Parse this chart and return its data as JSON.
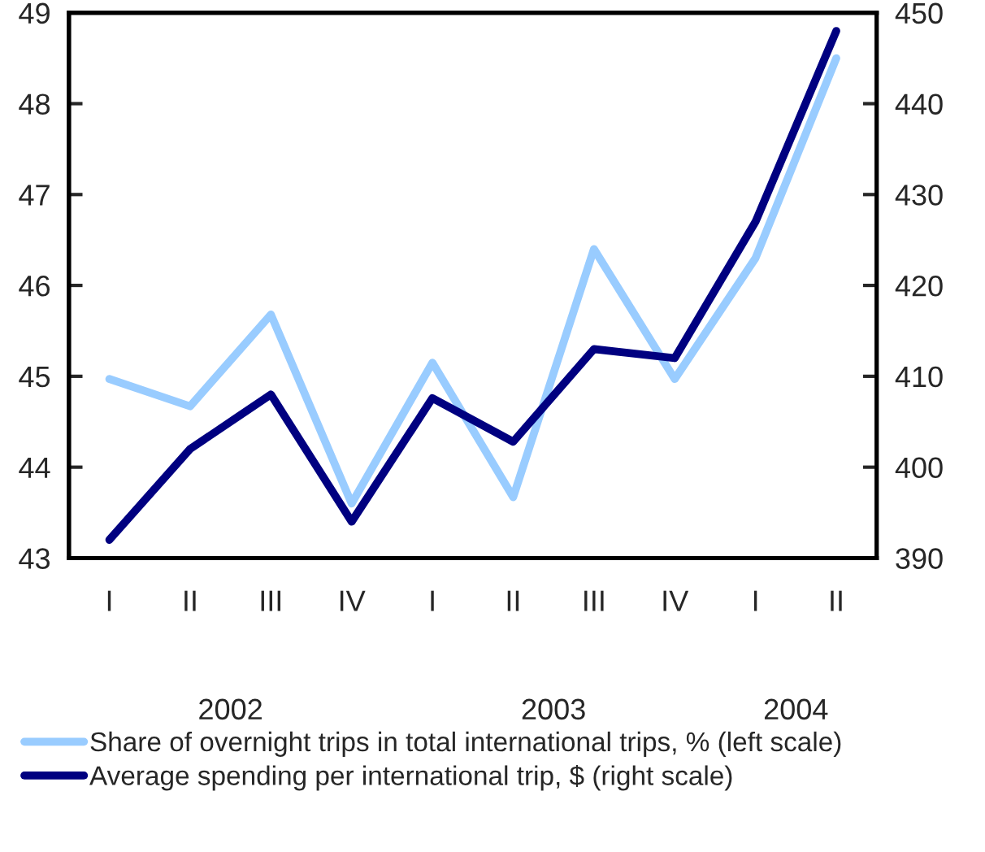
{
  "chart_data": {
    "type": "line",
    "categories": [
      "I",
      "II",
      "III",
      "IV",
      "I",
      "II",
      "III",
      "IV",
      "I",
      "II"
    ],
    "series": [
      {
        "name": "Share of overnight trips in total international trips, % (left scale)",
        "color": "#99ccff",
        "values": [
          44.97,
          44.67,
          45.68,
          43.6,
          45.15,
          43.67,
          46.4,
          44.97,
          46.3,
          48.5
        ]
      },
      {
        "name": "Average spending per international trip, $ (right scale)",
        "color": "#000080",
        "axis": "y2",
        "values": [
          392,
          402,
          408,
          394,
          407.6,
          402.8,
          413,
          412,
          427,
          448
        ]
      }
    ],
    "ylim": [
      43,
      49
    ],
    "yticks": [
      43,
      44,
      45,
      46,
      47,
      48,
      49
    ],
    "y2lim": [
      390,
      450
    ],
    "y2ticks": [
      390,
      400,
      410,
      420,
      430,
      440,
      450
    ],
    "annotations": [
      "2002",
      "2003",
      "2004"
    ],
    "grid": false,
    "legend": "bottom",
    "marker": "none",
    "line_style": "solid"
  }
}
